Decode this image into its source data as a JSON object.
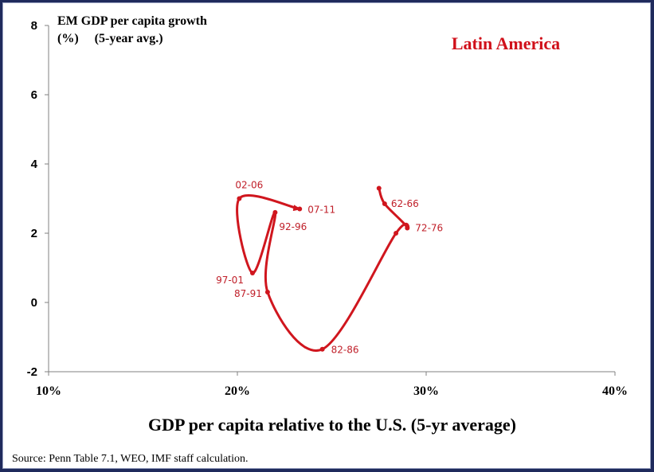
{
  "chart_data": {
    "type": "line",
    "title": "Latin America",
    "ylabel_line1": "EM GDP per capita growth",
    "ylabel_line2": "(%)     (5-year avg.)",
    "xlabel": "GDP per capita relative to the U.S. (5-yr average)",
    "source": "Source: Penn Table 7.1, WEO, IMF staff calculation.",
    "xlim": [
      10,
      40
    ],
    "ylim": [
      -2,
      8
    ],
    "x_ticks": [
      10,
      20,
      30,
      40
    ],
    "x_tick_labels": [
      "10%",
      "20%",
      "30%",
      "40%"
    ],
    "y_ticks": [
      -2,
      0,
      2,
      4,
      6,
      8
    ],
    "y_tick_labels": [
      "-2",
      "0",
      "2",
      "4",
      "6",
      "8"
    ],
    "grid": false,
    "series": [
      {
        "color": "#d0161e",
        "points": [
          {
            "x": 27.5,
            "y": 3.3,
            "label": ""
          },
          {
            "x": 27.8,
            "y": 2.85,
            "label": "62-66"
          },
          {
            "x": 29.0,
            "y": 2.15,
            "label": "72-76"
          },
          {
            "x": 28.4,
            "y": 2.0,
            "label": ""
          },
          {
            "x": 24.5,
            "y": -1.35,
            "label": "82-86"
          },
          {
            "x": 21.6,
            "y": 0.3,
            "label": "87-91"
          },
          {
            "x": 22.0,
            "y": 2.6,
            "label": "92-96"
          },
          {
            "x": 20.8,
            "y": 0.85,
            "label": "97-01"
          },
          {
            "x": 20.1,
            "y": 3.0,
            "label": "02-06"
          },
          {
            "x": 23.3,
            "y": 2.7,
            "label": "07-11"
          }
        ]
      }
    ]
  }
}
